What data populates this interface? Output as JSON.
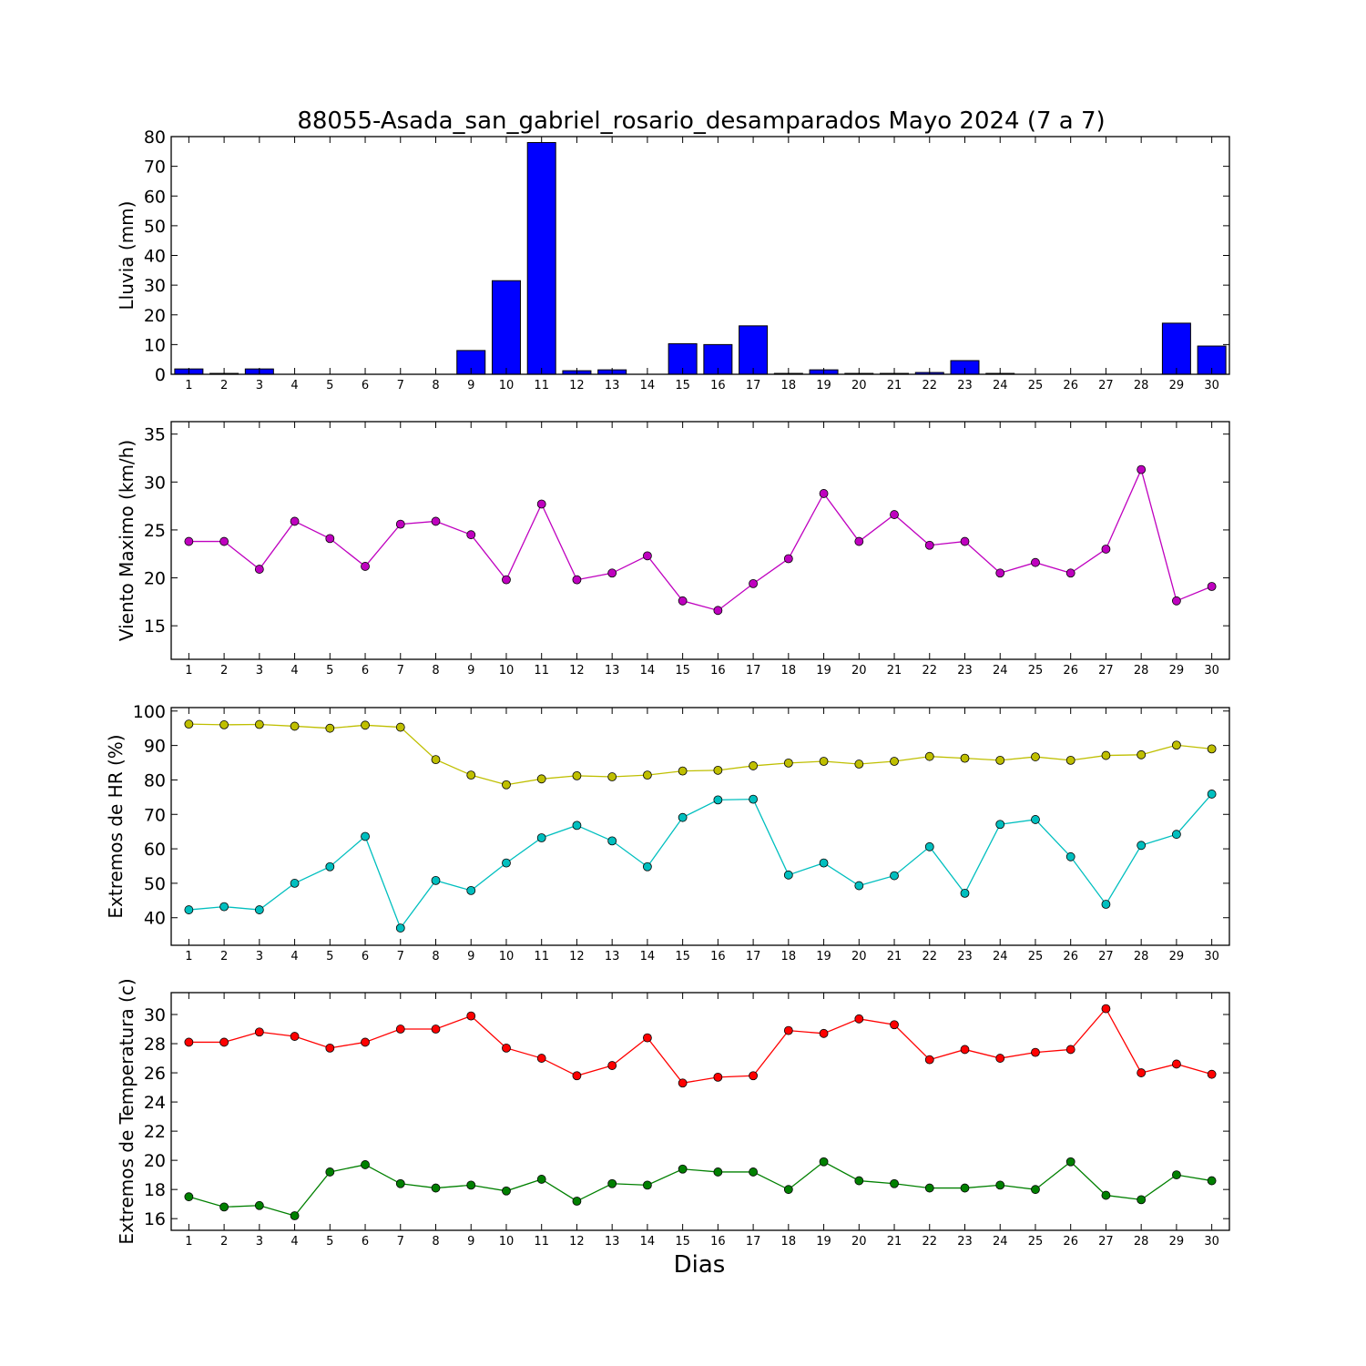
{
  "title": "88055-Asada_san_gabriel_rosario_desamparados Mayo 2024  (7 a 7)",
  "xlabel": "Dias",
  "chart_data": [
    {
      "type": "bar",
      "ylabel": "Lluvia (mm)",
      "ylim": [
        0,
        80
      ],
      "yticks": [
        0,
        10,
        20,
        30,
        40,
        50,
        60,
        70,
        80
      ],
      "color": "#0000ff",
      "categories": [
        1,
        2,
        3,
        4,
        5,
        6,
        7,
        8,
        9,
        10,
        11,
        12,
        13,
        14,
        15,
        16,
        17,
        18,
        19,
        20,
        21,
        22,
        23,
        24,
        25,
        26,
        27,
        28,
        29,
        30
      ],
      "values": [
        1.8,
        0.3,
        1.8,
        0,
        0,
        0,
        0,
        0,
        8.0,
        31.5,
        78.0,
        1.2,
        1.5,
        0,
        10.3,
        10.0,
        16.3,
        0.3,
        1.5,
        0.3,
        0.3,
        0.6,
        4.6,
        0.3,
        0,
        0,
        0,
        0,
        17.2,
        9.5
      ]
    },
    {
      "type": "line",
      "ylabel": "Viento Maximo (km/h)",
      "ylim": [
        11.5,
        36.3
      ],
      "yticks": [
        15,
        20,
        25,
        30,
        35
      ],
      "x": [
        1,
        2,
        3,
        4,
        5,
        6,
        7,
        8,
        9,
        10,
        11,
        12,
        13,
        14,
        15,
        16,
        17,
        18,
        19,
        20,
        21,
        22,
        23,
        24,
        25,
        26,
        27,
        28,
        29,
        30
      ],
      "series": [
        {
          "color": "#bf00bf",
          "values": [
            23.8,
            23.8,
            20.9,
            25.9,
            24.1,
            21.2,
            25.6,
            25.9,
            24.5,
            19.8,
            27.7,
            19.8,
            20.5,
            22.3,
            17.6,
            16.6,
            19.4,
            22.0,
            28.8,
            23.8,
            26.6,
            23.4,
            23.8,
            20.5,
            21.6,
            20.5,
            23.0,
            31.3,
            17.6,
            19.1
          ]
        }
      ]
    },
    {
      "type": "line",
      "ylabel": "Extremos de HR (%)",
      "ylim": [
        32,
        101
      ],
      "yticks": [
        40,
        50,
        60,
        70,
        80,
        90,
        100
      ],
      "x": [
        1,
        2,
        3,
        4,
        5,
        6,
        7,
        8,
        9,
        10,
        11,
        12,
        13,
        14,
        15,
        16,
        17,
        18,
        19,
        20,
        21,
        22,
        23,
        24,
        25,
        26,
        27,
        28,
        29,
        30
      ],
      "series": [
        {
          "color": "#bfbf00",
          "values": [
            96.2,
            96.0,
            96.1,
            95.6,
            95.0,
            95.9,
            95.3,
            85.9,
            81.4,
            78.6,
            80.3,
            81.2,
            80.9,
            81.4,
            82.6,
            82.8,
            84.1,
            84.9,
            85.4,
            84.6,
            85.4,
            86.8,
            86.3,
            85.7,
            86.7,
            85.7,
            87.1,
            87.3,
            90.1,
            89.0
          ]
        },
        {
          "color": "#00bfbf",
          "values": [
            42.3,
            43.2,
            42.3,
            50.0,
            54.8,
            63.6,
            37.0,
            50.8,
            47.9,
            55.9,
            63.2,
            66.8,
            62.3,
            54.8,
            69.1,
            74.2,
            74.4,
            52.4,
            55.9,
            49.3,
            52.2,
            60.6,
            47.1,
            67.1,
            68.5,
            57.7,
            43.9,
            61.0,
            64.2,
            75.9
          ]
        }
      ]
    },
    {
      "type": "line",
      "ylabel": "Extremos de Temperatura (c)",
      "ylim": [
        15.2,
        31.5
      ],
      "yticks": [
        16,
        18,
        20,
        22,
        24,
        26,
        28,
        30
      ],
      "x": [
        1,
        2,
        3,
        4,
        5,
        6,
        7,
        8,
        9,
        10,
        11,
        12,
        13,
        14,
        15,
        16,
        17,
        18,
        19,
        20,
        21,
        22,
        23,
        24,
        25,
        26,
        27,
        28,
        29,
        30
      ],
      "series": [
        {
          "color": "#ff0000",
          "values": [
            28.1,
            28.1,
            28.8,
            28.5,
            27.7,
            28.1,
            29.0,
            29.0,
            29.9,
            27.7,
            27.0,
            25.8,
            26.5,
            28.4,
            25.3,
            25.7,
            25.8,
            28.9,
            28.7,
            29.7,
            29.3,
            26.9,
            27.6,
            27.0,
            27.4,
            27.6,
            30.4,
            26.0,
            26.6,
            25.9
          ]
        },
        {
          "color": "#008000",
          "values": [
            17.5,
            16.8,
            16.9,
            16.2,
            19.2,
            19.7,
            18.4,
            18.1,
            18.3,
            17.9,
            18.7,
            17.2,
            18.4,
            18.3,
            19.4,
            19.2,
            19.2,
            18.0,
            19.9,
            18.6,
            18.4,
            18.1,
            18.1,
            18.3,
            18.0,
            19.9,
            17.6,
            17.3,
            19.0,
            18.6
          ]
        }
      ]
    }
  ]
}
